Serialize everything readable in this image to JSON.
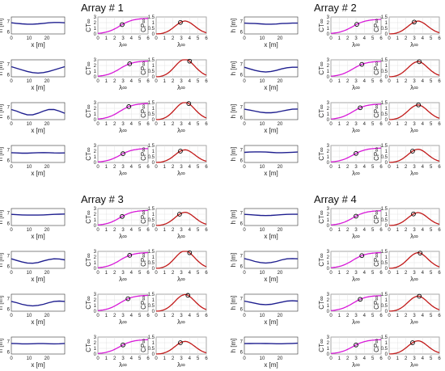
{
  "arrays": [
    {
      "title": "Array # 1",
      "rows": [
        {
          "h": {
            "x": [
              0,
              3,
              6,
              9,
              12,
              15,
              18,
              21,
              24,
              27,
              30
            ],
            "y": [
              6.85,
              6.8,
              6.75,
              6.72,
              6.72,
              6.75,
              6.8,
              6.85,
              6.88,
              6.88,
              6.85
            ]
          },
          "ct_marker": [
            2.9,
            1.65
          ],
          "cp_marker": [
            2.9,
            1.02
          ]
        },
        {
          "h": {
            "x": [
              0,
              3,
              6,
              9,
              12,
              15,
              18,
              21,
              24,
              27,
              30
            ],
            "y": [
              6.75,
              6.6,
              6.45,
              6.3,
              6.2,
              6.15,
              6.2,
              6.3,
              6.45,
              6.6,
              6.75
            ]
          },
          "ct_marker": [
            3.8,
            2.3
          ],
          "cp_marker": [
            4.0,
            1.38
          ]
        },
        {
          "h": {
            "x": [
              0,
              3,
              6,
              9,
              12,
              15,
              18,
              21,
              24,
              27,
              30
            ],
            "y": [
              6.75,
              6.6,
              6.4,
              6.25,
              6.25,
              6.4,
              6.6,
              6.75,
              6.75,
              6.6,
              6.4
            ]
          },
          "ct_marker": [
            3.7,
            2.3
          ],
          "cp_marker": [
            3.9,
            1.42
          ]
        },
        {
          "h": {
            "x": [
              0,
              3,
              6,
              9,
              12,
              15,
              18,
              21,
              24,
              27,
              30
            ],
            "y": [
              6.72,
              6.7,
              6.68,
              6.68,
              6.7,
              6.72,
              6.73,
              6.72,
              6.7,
              6.69,
              6.7
            ]
          },
          "ct_marker": [
            3.0,
            1.55
          ],
          "cp_marker": [
            2.9,
            1.0
          ]
        }
      ]
    },
    {
      "title": "Array # 2",
      "rows": [
        {
          "h": {
            "x": [
              0,
              3,
              6,
              9,
              12,
              15,
              18,
              21,
              24,
              27,
              30
            ],
            "y": [
              6.82,
              6.8,
              6.78,
              6.75,
              6.72,
              6.72,
              6.74,
              6.78,
              6.8,
              6.82,
              6.82
            ]
          },
          "ct_marker": [
            3.1,
            1.7
          ],
          "cp_marker": [
            3.0,
            1.05
          ]
        },
        {
          "h": {
            "x": [
              0,
              3,
              6,
              9,
              12,
              15,
              18,
              21,
              24,
              27,
              30
            ],
            "y": [
              6.7,
              6.55,
              6.4,
              6.3,
              6.25,
              6.3,
              6.4,
              6.55,
              6.65,
              6.7,
              6.7
            ]
          },
          "ct_marker": [
            3.7,
            2.2
          ],
          "cp_marker": [
            3.6,
            1.33
          ]
        },
        {
          "h": {
            "x": [
              0,
              3,
              6,
              9,
              12,
              15,
              18,
              21,
              24,
              27,
              30
            ],
            "y": [
              6.78,
              6.7,
              6.6,
              6.5,
              6.45,
              6.45,
              6.5,
              6.6,
              6.7,
              6.78,
              6.8
            ]
          },
          "ct_marker": [
            3.5,
            2.1
          ],
          "cp_marker": [
            3.5,
            1.3
          ]
        },
        {
          "h": {
            "x": [
              0,
              3,
              6,
              9,
              12,
              15,
              18,
              21,
              24,
              27,
              30
            ],
            "y": [
              6.75,
              6.78,
              6.8,
              6.8,
              6.78,
              6.75,
              6.72,
              6.72,
              6.74,
              6.76,
              6.78
            ]
          },
          "ct_marker": [
            3.0,
            1.6
          ],
          "cp_marker": [
            2.8,
            1.0
          ]
        }
      ]
    },
    {
      "title": "Array # 3",
      "rows": [
        {
          "h": {
            "x": [
              0,
              3,
              6,
              9,
              12,
              15,
              18,
              21,
              24,
              27,
              30
            ],
            "y": [
              6.85,
              6.82,
              6.8,
              6.78,
              6.78,
              6.78,
              6.8,
              6.82,
              6.85,
              6.87,
              6.88
            ]
          },
          "ct_marker": [
            2.9,
            1.6
          ],
          "cp_marker": [
            2.8,
            1.0
          ]
        },
        {
          "h": {
            "x": [
              0,
              3,
              6,
              9,
              12,
              15,
              18,
              21,
              24,
              27,
              30
            ],
            "y": [
              6.7,
              6.55,
              6.4,
              6.3,
              6.28,
              6.35,
              6.5,
              6.62,
              6.7,
              6.68,
              6.6
            ]
          },
          "ct_marker": [
            3.8,
            2.3
          ],
          "cp_marker": [
            4.0,
            1.38
          ]
        },
        {
          "h": {
            "x": [
              0,
              3,
              6,
              9,
              12,
              15,
              18,
              21,
              24,
              27,
              30
            ],
            "y": [
              6.72,
              6.6,
              6.45,
              6.35,
              6.3,
              6.35,
              6.45,
              6.6,
              6.72,
              6.75,
              6.72
            ]
          },
          "ct_marker": [
            3.6,
            2.2
          ],
          "cp_marker": [
            3.8,
            1.4
          ]
        },
        {
          "h": {
            "x": [
              0,
              3,
              6,
              9,
              12,
              15,
              18,
              21,
              24,
              27,
              30
            ],
            "y": [
              6.8,
              6.78,
              6.76,
              6.76,
              6.77,
              6.78,
              6.78,
              6.77,
              6.76,
              6.77,
              6.8
            ]
          },
          "ct_marker": [
            3.0,
            1.6
          ],
          "cp_marker": [
            2.9,
            1.0
          ]
        }
      ]
    },
    {
      "title": "Array # 4",
      "rows": [
        {
          "h": {
            "x": [
              0,
              3,
              6,
              9,
              12,
              15,
              18,
              21,
              24,
              27,
              30
            ],
            "y": [
              6.85,
              6.82,
              6.78,
              6.75,
              6.74,
              6.75,
              6.78,
              6.82,
              6.85,
              6.86,
              6.86
            ]
          },
          "ct_marker": [
            3.0,
            1.65
          ],
          "cp_marker": [
            2.9,
            1.02
          ]
        },
        {
          "h": {
            "x": [
              0,
              3,
              6,
              9,
              12,
              15,
              18,
              21,
              24,
              27,
              30
            ],
            "y": [
              6.72,
              6.6,
              6.45,
              6.35,
              6.3,
              6.35,
              6.45,
              6.6,
              6.7,
              6.72,
              6.7
            ]
          },
          "ct_marker": [
            3.7,
            2.25
          ],
          "cp_marker": [
            3.7,
            1.35
          ]
        },
        {
          "h": {
            "x": [
              0,
              3,
              6,
              9,
              12,
              15,
              18,
              21,
              24,
              27,
              30
            ],
            "y": [
              6.75,
              6.65,
              6.55,
              6.45,
              6.42,
              6.45,
              6.55,
              6.65,
              6.75,
              6.78,
              6.75
            ]
          },
          "ct_marker": [
            3.5,
            2.1
          ],
          "cp_marker": [
            3.6,
            1.32
          ]
        },
        {
          "h": {
            "x": [
              0,
              3,
              6,
              9,
              12,
              15,
              18,
              21,
              24,
              27,
              30
            ],
            "y": [
              6.78,
              6.79,
              6.8,
              6.8,
              6.79,
              6.78,
              6.77,
              6.77,
              6.78,
              6.8,
              6.82
            ]
          },
          "ct_marker": [
            3.0,
            1.6
          ],
          "cp_marker": [
            2.8,
            1.0
          ]
        }
      ]
    }
  ],
  "chart_data": {
    "type": "line",
    "colors": {
      "h": "#1f1f8f",
      "ct": "#d81ad8",
      "cp": "#c21a1a",
      "marker_edge": "#000000"
    },
    "h_axis": {
      "xlabel": "x [m]",
      "ylabel": "h [m]",
      "xlim": [
        0,
        30
      ],
      "ylim": [
        5.8,
        7.4
      ],
      "xticks": [
        "0",
        "10",
        "20"
      ],
      "yticks": [
        "6",
        "7"
      ],
      "grid": false
    },
    "ct_axis": {
      "xlabel": "λ∞",
      "ylabel": "CT∞",
      "xlim": [
        0,
        6
      ],
      "ylim": [
        0,
        3
      ],
      "xticks": [
        "0",
        "1",
        "2",
        "3",
        "4",
        "5",
        "6"
      ],
      "yticks": [
        "0",
        "1",
        "2",
        "3"
      ],
      "grid": true
    },
    "cp_axis": {
      "xlabel": "λ∞",
      "ylabel": "CP∞",
      "xlim": [
        0,
        6
      ],
      "ylim": [
        0,
        1.5
      ],
      "xticks": [
        "0",
        "1",
        "2",
        "3",
        "4",
        "5",
        "6"
      ],
      "yticks": [
        "0",
        "0.5",
        "1",
        "1.5"
      ],
      "grid": true
    }
  }
}
